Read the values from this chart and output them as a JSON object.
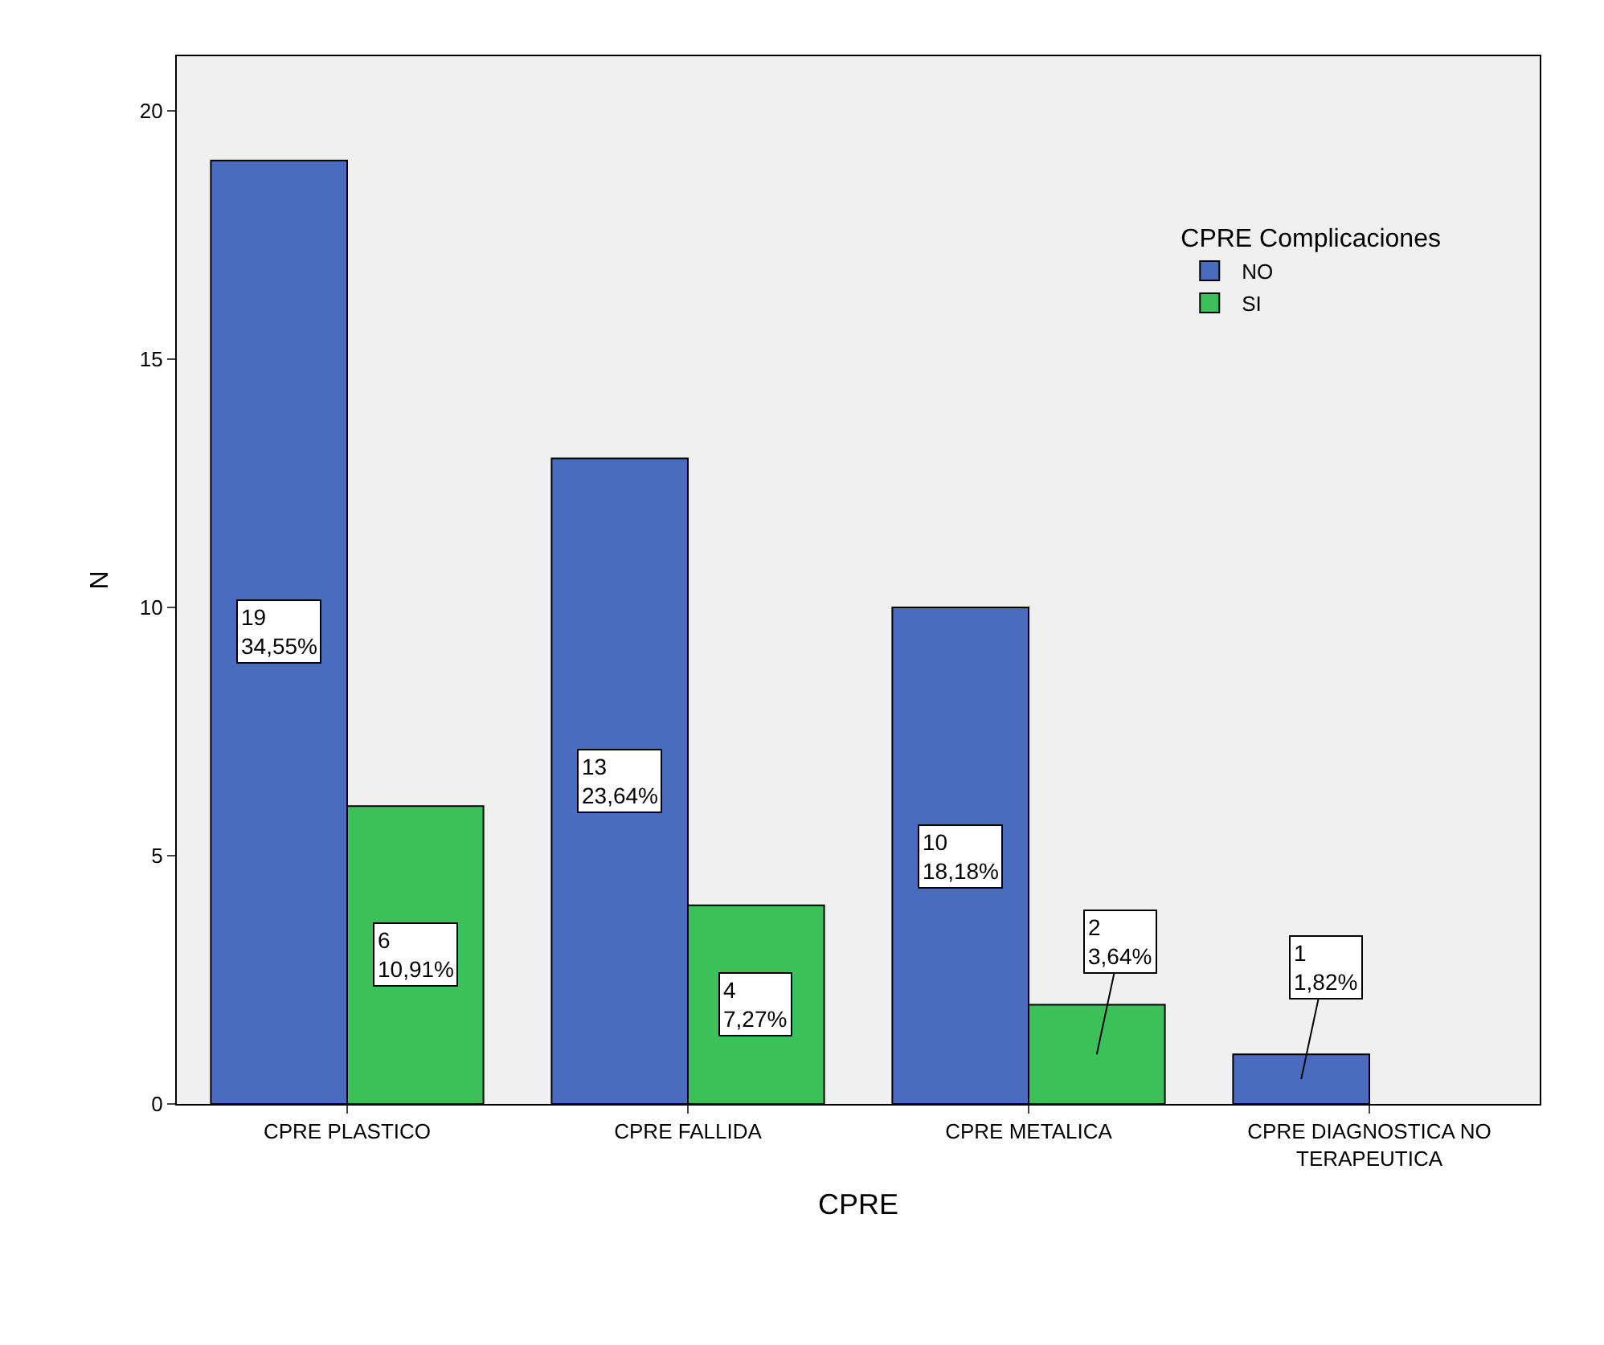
{
  "chart_data": {
    "type": "bar",
    "xlabel": "CPRE",
    "ylabel": "N",
    "legend_title": "CPRE Complicaciones",
    "legend": "top right",
    "grid": false,
    "categories": [
      "CPRE PLASTICO",
      "CPRE FALLIDA",
      "CPRE METALICA",
      "CPRE DIAGNOSTICA NO TERAPEUTICA"
    ],
    "ylim": [
      0,
      21.1
    ],
    "yticks": [
      0,
      5,
      10,
      15,
      20
    ],
    "series": [
      {
        "name": "NO",
        "color": "#4a6cbe",
        "values": [
          19,
          13,
          10,
          1
        ],
        "value_labels": [
          "19\n34,55%",
          "13\n23,64%",
          "10\n18,18%",
          "1\n1,82%"
        ]
      },
      {
        "name": "SI",
        "color": "#3cc05a",
        "values": [
          6,
          4,
          2,
          null
        ],
        "value_labels": [
          "6\n10,91%",
          "4\n7,27%",
          "2\n3,64%",
          null
        ]
      }
    ]
  }
}
